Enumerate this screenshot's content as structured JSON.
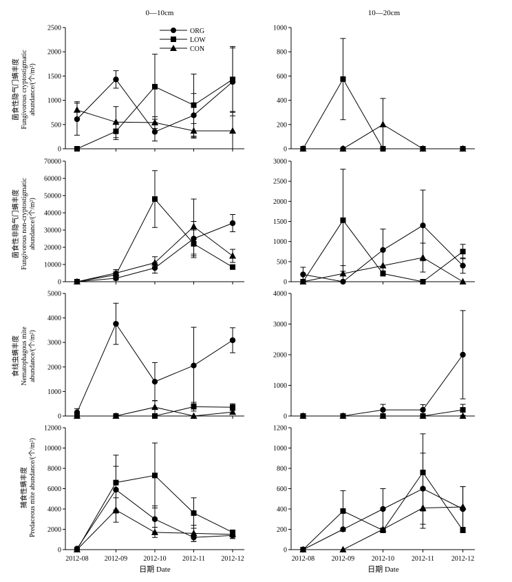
{
  "header": {
    "left": "0—10cm",
    "right": "10—20cm"
  },
  "legend": {
    "items": [
      "ORG",
      "LOW",
      "CON"
    ]
  },
  "x_axis_label": "日期 Date",
  "rows": [
    {
      "ylabel": [
        "菌食性隐气门螨丰度",
        "Fungivorous cryptostigmatic",
        "abundance/(个/m²)"
      ]
    },
    {
      "ylabel": [
        "菌食性非隐气门螨丰度",
        "Fungivorous non-cryptostigmatic",
        "abundance/(个/m²)"
      ]
    },
    {
      "ylabel": [
        "食线虫螨丰度",
        "Nematophagous mite",
        "abundance/(个/m²)"
      ]
    },
    {
      "ylabel": [
        "捕食性螨丰度",
        "Predaceous mite abundance/(个/m²)"
      ]
    }
  ],
  "chart_data": [
    {
      "type": "line",
      "panel": "row1-left",
      "depth": "0—10cm",
      "categories": [
        "2012-08",
        "2012-09",
        "2012-10",
        "2012-11",
        "2012-12"
      ],
      "ylim": [
        0,
        2500
      ],
      "yticks": [
        0,
        500,
        1000,
        1500,
        2000,
        2500
      ],
      "series": [
        {
          "name": "ORG",
          "marker": "circle",
          "values": [
            610,
            1430,
            350,
            690,
            1380
          ],
          "err": [
            330,
            180,
            190,
            450,
            700
          ]
        },
        {
          "name": "LOW",
          "marker": "square",
          "values": [
            0,
            360,
            1280,
            900,
            1430
          ],
          "err": [
            0,
            170,
            670,
            640,
            680
          ]
        },
        {
          "name": "CON",
          "marker": "triangle",
          "values": [
            800,
            550,
            540,
            370,
            370
          ],
          "err": [
            170,
            320,
            120,
            150,
            400
          ]
        }
      ]
    },
    {
      "type": "line",
      "panel": "row1-right",
      "depth": "10—20cm",
      "categories": [
        "2012-08",
        "2012-09",
        "2012-10",
        "2012-11",
        "2012-12"
      ],
      "ylim": [
        0,
        1000
      ],
      "yticks": [
        0,
        200,
        400,
        600,
        800,
        1000
      ],
      "series": [
        {
          "name": "ORG",
          "marker": "circle",
          "values": [
            0,
            0,
            0,
            0,
            0
          ],
          "err": [
            0,
            0,
            0,
            0,
            0
          ]
        },
        {
          "name": "LOW",
          "marker": "square",
          "values": [
            0,
            575,
            0,
            0,
            0
          ],
          "err": [
            0,
            335,
            0,
            0,
            0
          ]
        },
        {
          "name": "CON",
          "marker": "triangle",
          "values": [
            0,
            0,
            200,
            0,
            0
          ],
          "err": [
            0,
            0,
            215,
            0,
            0
          ]
        }
      ]
    },
    {
      "type": "line",
      "panel": "row2-left",
      "depth": "0—10cm",
      "categories": [
        "2012-08",
        "2012-09",
        "2012-10",
        "2012-11",
        "2012-12"
      ],
      "ylim": [
        0,
        70000
      ],
      "yticks": [
        0,
        10000,
        20000,
        30000,
        40000,
        50000,
        60000,
        70000
      ],
      "series": [
        {
          "name": "ORG",
          "marker": "circle",
          "values": [
            0,
            2000,
            8000,
            25000,
            34000
          ],
          "err": [
            0,
            1000,
            3000,
            10000,
            5000
          ]
        },
        {
          "name": "LOW",
          "marker": "square",
          "values": [
            0,
            4000,
            48000,
            22000,
            8500
          ],
          "err": [
            0,
            2000,
            16500,
            8000,
            0
          ]
        },
        {
          "name": "CON",
          "marker": "triangle",
          "values": [
            0,
            5000,
            11000,
            32000,
            15000
          ],
          "err": [
            0,
            2000,
            3500,
            16000,
            3800
          ]
        }
      ]
    },
    {
      "type": "line",
      "panel": "row2-right",
      "depth": "10—20cm",
      "categories": [
        "2012-08",
        "2012-09",
        "2012-10",
        "2012-11",
        "2012-12"
      ],
      "ylim": [
        0,
        3000
      ],
      "yticks": [
        0,
        500,
        1000,
        1500,
        2000,
        2500,
        3000
      ],
      "series": [
        {
          "name": "ORG",
          "marker": "circle",
          "values": [
            180,
            0,
            790,
            1400,
            400
          ],
          "err": [
            180,
            0,
            520,
            880,
            190
          ]
        },
        {
          "name": "LOW",
          "marker": "square",
          "values": [
            0,
            1530,
            200,
            0,
            750
          ],
          "err": [
            0,
            1270,
            0,
            0,
            180
          ]
        },
        {
          "name": "CON",
          "marker": "triangle",
          "values": [
            0,
            200,
            400,
            600,
            0
          ],
          "err": [
            0,
            200,
            0,
            360,
            0
          ]
        }
      ]
    },
    {
      "type": "line",
      "panel": "row3-left",
      "depth": "0—10cm",
      "categories": [
        "2012-08",
        "2012-09",
        "2012-10",
        "2012-11",
        "2012-12"
      ],
      "ylim": [
        0,
        5000
      ],
      "yticks": [
        0,
        1000,
        2000,
        3000,
        4000,
        5000
      ],
      "series": [
        {
          "name": "ORG",
          "marker": "circle",
          "values": [
            150,
            3760,
            1400,
            2060,
            3090
          ],
          "err": [
            150,
            840,
            780,
            1560,
            510
          ]
        },
        {
          "name": "LOW",
          "marker": "square",
          "values": [
            0,
            0,
            0,
            380,
            360
          ],
          "err": [
            0,
            0,
            0,
            180,
            140
          ]
        },
        {
          "name": "CON",
          "marker": "triangle",
          "values": [
            0,
            0,
            360,
            0,
            160
          ],
          "err": [
            0,
            0,
            270,
            0,
            70
          ]
        }
      ]
    },
    {
      "type": "line",
      "panel": "row3-right",
      "depth": "10—20cm",
      "categories": [
        "2012-08",
        "2012-09",
        "2012-10",
        "2012-11",
        "2012-12"
      ],
      "ylim": [
        0,
        4000
      ],
      "yticks": [
        0,
        1000,
        2000,
        3000,
        4000
      ],
      "series": [
        {
          "name": "ORG",
          "marker": "circle",
          "values": [
            0,
            0,
            200,
            200,
            2000
          ],
          "err": [
            0,
            0,
            180,
            170,
            1440
          ]
        },
        {
          "name": "LOW",
          "marker": "square",
          "values": [
            0,
            0,
            0,
            0,
            200
          ],
          "err": [
            0,
            0,
            0,
            0,
            180
          ]
        },
        {
          "name": "CON",
          "marker": "triangle",
          "values": [
            0,
            0,
            0,
            0,
            0
          ],
          "err": [
            0,
            0,
            0,
            0,
            0
          ]
        }
      ]
    },
    {
      "type": "line",
      "panel": "row4-left",
      "depth": "0—10cm",
      "categories": [
        "2012-08",
        "2012-09",
        "2012-10",
        "2012-11",
        "2012-12"
      ],
      "ylim": [
        0,
        12000
      ],
      "yticks": [
        0,
        2000,
        4000,
        6000,
        8000,
        10000,
        12000
      ],
      "series": [
        {
          "name": "ORG",
          "marker": "circle",
          "values": [
            100,
            5900,
            3000,
            1200,
            1400
          ],
          "err": [
            100,
            2300,
            1300,
            400,
            300
          ]
        },
        {
          "name": "LOW",
          "marker": "square",
          "values": [
            0,
            6600,
            7300,
            3600,
            1700
          ],
          "err": [
            0,
            2700,
            3200,
            1500,
            200
          ]
        },
        {
          "name": "CON",
          "marker": "triangle",
          "values": [
            0,
            3900,
            1700,
            1600,
            1500
          ],
          "err": [
            0,
            1200,
            500,
            800,
            400
          ]
        }
      ]
    },
    {
      "type": "line",
      "panel": "row4-right",
      "depth": "10—20cm",
      "categories": [
        "2012-08",
        "2012-09",
        "2012-10",
        "2012-11",
        "2012-12"
      ],
      "ylim": [
        0,
        1200
      ],
      "yticks": [
        0,
        200,
        400,
        600,
        800,
        1000,
        1200
      ],
      "series": [
        {
          "name": "ORG",
          "marker": "circle",
          "values": [
            0,
            200,
            400,
            600,
            400
          ],
          "err": [
            0,
            0,
            200,
            350,
            220
          ]
        },
        {
          "name": "LOW",
          "marker": "square",
          "values": [
            0,
            380,
            190,
            760,
            190
          ],
          "err": [
            0,
            200,
            0,
            380,
            0
          ]
        },
        {
          "name": "CON",
          "marker": "triangle",
          "values": [
            0,
            0,
            200,
            410,
            420
          ],
          "err": [
            0,
            0,
            0,
            200,
            200
          ]
        }
      ]
    }
  ]
}
